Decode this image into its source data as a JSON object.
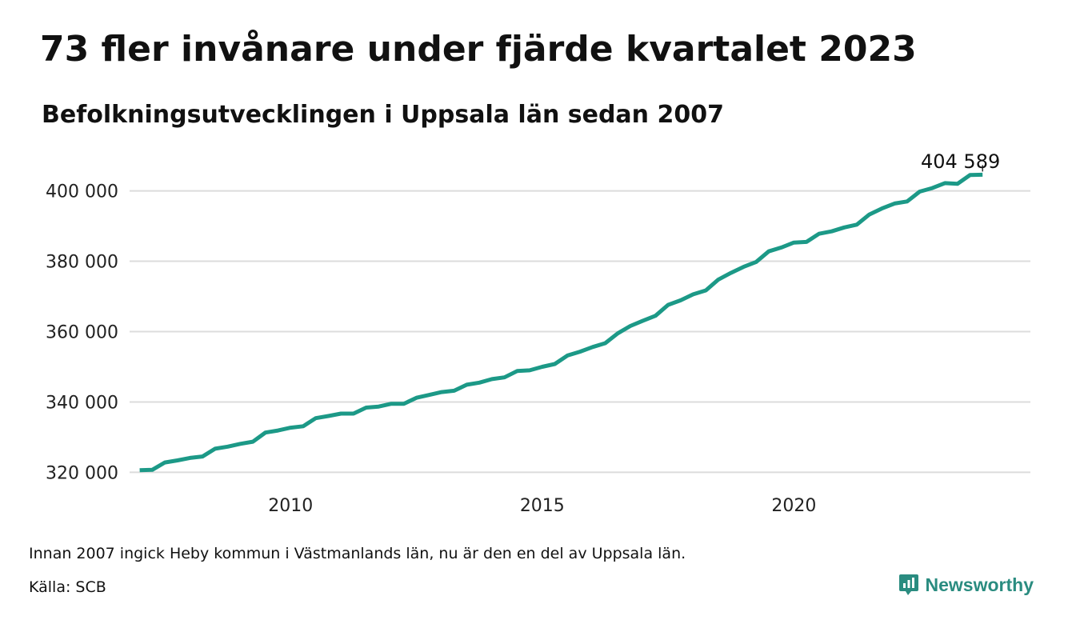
{
  "title": "73 fler invånare under fjärde kvartalet 2023",
  "subtitle": "Befolkningsutvecklingen i Uppsala län sedan 2007",
  "note": "Innan 2007 ingick Heby kommun i Västmanlands län, nu är den en del av Uppsala län.",
  "source": "Källa: SCB",
  "brand": "Newsworthy",
  "colors": {
    "line": "#1c9987",
    "grid": "#dcdcdc",
    "brand": "#2a8c80"
  },
  "chart_data": {
    "type": "line",
    "title": "73 fler invånare under fjärde kvartalet 2023",
    "subtitle": "Befolkningsutvecklingen i Uppsala län sedan 2007",
    "xlabel": "",
    "ylabel": "",
    "x_ticks": [
      2010,
      2015,
      2020
    ],
    "x_tick_labels": [
      "2010",
      "2015",
      "2020"
    ],
    "y_ticks": [
      320000,
      340000,
      360000,
      380000,
      400000
    ],
    "y_tick_labels": [
      "320 000",
      "340 000",
      "360 000",
      "380 000",
      "400 000"
    ],
    "xlim": [
      2006.8,
      2024.7
    ],
    "ylim": [
      316000,
      406500
    ],
    "grid": true,
    "end_label": "404 589",
    "x": [
      "2007-Q1",
      "2007-Q2",
      "2007-Q3",
      "2007-Q4",
      "2008-Q1",
      "2008-Q2",
      "2008-Q3",
      "2008-Q4",
      "2009-Q1",
      "2009-Q2",
      "2009-Q3",
      "2009-Q4",
      "2010-Q1",
      "2010-Q2",
      "2010-Q3",
      "2010-Q4",
      "2011-Q1",
      "2011-Q2",
      "2011-Q3",
      "2011-Q4",
      "2012-Q1",
      "2012-Q2",
      "2012-Q3",
      "2012-Q4",
      "2013-Q1",
      "2013-Q2",
      "2013-Q3",
      "2013-Q4",
      "2014-Q1",
      "2014-Q2",
      "2014-Q3",
      "2014-Q4",
      "2015-Q1",
      "2015-Q2",
      "2015-Q3",
      "2015-Q4",
      "2016-Q1",
      "2016-Q2",
      "2016-Q3",
      "2016-Q4",
      "2017-Q1",
      "2017-Q2",
      "2017-Q3",
      "2017-Q4",
      "2018-Q1",
      "2018-Q2",
      "2018-Q3",
      "2018-Q4",
      "2019-Q1",
      "2019-Q2",
      "2019-Q3",
      "2019-Q4",
      "2020-Q1",
      "2020-Q2",
      "2020-Q3",
      "2020-Q4",
      "2021-Q1",
      "2021-Q2",
      "2021-Q3",
      "2021-Q4",
      "2022-Q1",
      "2022-Q2",
      "2022-Q3",
      "2022-Q4",
      "2023-Q1",
      "2023-Q2",
      "2023-Q3",
      "2023-Q4"
    ],
    "series": [
      {
        "values": [
          320600,
          320700,
          322800,
          323400,
          324100,
          324500,
          326700,
          327300,
          328100,
          328700,
          331300,
          331900,
          332700,
          333100,
          335400,
          336000,
          336700,
          336700,
          338400,
          338700,
          339500,
          339500,
          341200,
          342000,
          342800,
          343200,
          344900,
          345500,
          346500,
          347000,
          348800,
          349000,
          350000,
          350800,
          353200,
          354300,
          355600,
          356700,
          359500,
          361600,
          363100,
          364500,
          367600,
          368900,
          370600,
          371700,
          374800,
          376700,
          378400,
          379800,
          382800,
          383900,
          385300,
          385500,
          387800,
          388500,
          389600,
          390400,
          393300,
          395000,
          396400,
          397000,
          399800,
          400800,
          402200,
          402000,
          404500,
          404589
        ]
      }
    ]
  }
}
